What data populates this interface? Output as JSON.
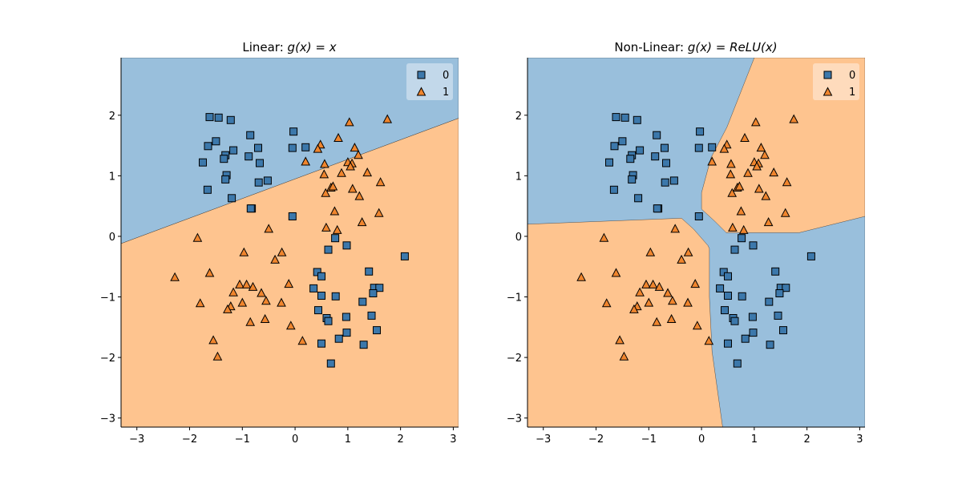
{
  "figure": {
    "background": "#ffffff"
  },
  "colors": {
    "class0_marker": "#3c78ab",
    "class1_marker": "#f0852d",
    "class0_region": "#99bfdc",
    "class1_region": "#fec48f",
    "marker_edge": "#000000",
    "legend_bg_0": "#b9d3e8",
    "legend_bg_1": "#fed5af"
  },
  "chart_data": [
    {
      "type": "scatter",
      "title": "Linear: g(x) = x",
      "title_plain": "Linear: ",
      "title_math": "g(x) = x",
      "xlim": [
        -3.3,
        3.1
      ],
      "ylim": [
        -3.15,
        2.95
      ],
      "xticks": [
        -3,
        -2,
        -1,
        0,
        1,
        2,
        3
      ],
      "yticks": [
        -3,
        -2,
        -1,
        0,
        1,
        2
      ],
      "xtick_labels": [
        "−3",
        "−2",
        "−1",
        "0",
        "1",
        "2",
        "3"
      ],
      "ytick_labels": [
        "−3",
        "−2",
        "−1",
        "0",
        "1",
        "2"
      ],
      "legend": {
        "placement": "top-right",
        "entries": [
          "0",
          "1"
        ]
      },
      "decision_regions": [
        {
          "class": 0,
          "polygon": [
            [
              -3.3,
              2.95
            ],
            [
              3.1,
              2.95
            ],
            [
              3.1,
              1.95
            ],
            [
              -3.3,
              -0.12
            ]
          ]
        },
        {
          "class": 1,
          "polygon": [
            [
              -3.3,
              -0.12
            ],
            [
              3.1,
              1.95
            ],
            [
              3.1,
              -3.15
            ],
            [
              -3.3,
              -3.15
            ]
          ]
        }
      ],
      "series": [
        {
          "name": "0",
          "marker": "square",
          "points": [
            [
              -1.62,
              1.97
            ],
            [
              -1.45,
              1.96
            ],
            [
              -1.22,
              1.92
            ],
            [
              -0.85,
              1.67
            ],
            [
              -0.03,
              1.73
            ],
            [
              -1.5,
              1.57
            ],
            [
              -1.65,
              1.49
            ],
            [
              -1.17,
              1.42
            ],
            [
              -1.32,
              1.34
            ],
            [
              -0.88,
              1.32
            ],
            [
              -1.35,
              1.28
            ],
            [
              -0.7,
              1.46
            ],
            [
              -0.05,
              1.46
            ],
            [
              0.2,
              1.47
            ],
            [
              -1.75,
              1.22
            ],
            [
              -0.67,
              1.21
            ],
            [
              -1.3,
              1.01
            ],
            [
              -1.32,
              0.94
            ],
            [
              -0.69,
              0.89
            ],
            [
              -0.52,
              0.92
            ],
            [
              -1.66,
              0.77
            ],
            [
              -1.2,
              0.63
            ],
            [
              -0.82,
              0.46
            ],
            [
              -0.84,
              0.46
            ],
            [
              -0.05,
              0.33
            ],
            [
              0.63,
              -0.22
            ],
            [
              0.76,
              -0.03
            ],
            [
              0.98,
              -0.15
            ],
            [
              0.42,
              -0.59
            ],
            [
              0.5,
              -0.66
            ],
            [
              1.4,
              -0.58
            ],
            [
              1.5,
              -0.85
            ],
            [
              1.6,
              -0.85
            ],
            [
              0.35,
              -0.86
            ],
            [
              1.48,
              -0.94
            ],
            [
              0.5,
              -0.98
            ],
            [
              0.77,
              -0.99
            ],
            [
              1.28,
              -1.08
            ],
            [
              0.44,
              -1.22
            ],
            [
              0.6,
              -1.35
            ],
            [
              0.97,
              -1.33
            ],
            [
              1.45,
              -1.31
            ],
            [
              0.63,
              -1.4
            ],
            [
              1.55,
              -1.55
            ],
            [
              0.98,
              -1.59
            ],
            [
              0.83,
              -1.69
            ],
            [
              0.5,
              -1.77
            ],
            [
              1.3,
              -1.79
            ],
            [
              0.68,
              -2.1
            ],
            [
              2.08,
              -0.33
            ]
          ]
        },
        {
          "name": "1",
          "marker": "triangle",
          "points": [
            [
              1.75,
              1.93
            ],
            [
              1.03,
              1.88
            ],
            [
              0.82,
              1.62
            ],
            [
              0.48,
              1.51
            ],
            [
              0.43,
              1.44
            ],
            [
              1.13,
              1.46
            ],
            [
              1.2,
              1.34
            ],
            [
              1.0,
              1.22
            ],
            [
              1.08,
              1.2
            ],
            [
              1.05,
              1.15
            ],
            [
              0.2,
              1.23
            ],
            [
              0.56,
              1.19
            ],
            [
              0.55,
              1.02
            ],
            [
              0.88,
              1.04
            ],
            [
              1.37,
              1.05
            ],
            [
              1.62,
              0.89
            ],
            [
              0.68,
              0.8
            ],
            [
              0.72,
              0.82
            ],
            [
              1.09,
              0.78
            ],
            [
              0.58,
              0.71
            ],
            [
              1.22,
              0.66
            ],
            [
              0.75,
              0.41
            ],
            [
              1.59,
              0.38
            ],
            [
              1.27,
              0.23
            ],
            [
              0.59,
              0.14
            ],
            [
              0.8,
              0.1
            ],
            [
              -0.5,
              0.12
            ],
            [
              -1.85,
              -0.03
            ],
            [
              -0.97,
              -0.27
            ],
            [
              -0.25,
              -0.27
            ],
            [
              -0.38,
              -0.39
            ],
            [
              -2.28,
              -0.68
            ],
            [
              -1.62,
              -0.61
            ],
            [
              -1.05,
              -0.8
            ],
            [
              -0.92,
              -0.8
            ],
            [
              -0.12,
              -0.79
            ],
            [
              -0.8,
              -0.84
            ],
            [
              -1.17,
              -0.93
            ],
            [
              -0.64,
              -0.94
            ],
            [
              -1.8,
              -1.11
            ],
            [
              -1.0,
              -1.1
            ],
            [
              -0.55,
              -1.07
            ],
            [
              -0.26,
              -1.1
            ],
            [
              -1.22,
              -1.16
            ],
            [
              -1.28,
              -1.21
            ],
            [
              -0.57,
              -1.37
            ],
            [
              -0.85,
              -1.42
            ],
            [
              -0.08,
              -1.48
            ],
            [
              -1.55,
              -1.72
            ],
            [
              0.14,
              -1.73
            ],
            [
              -1.47,
              -1.99
            ]
          ]
        }
      ]
    },
    {
      "type": "scatter",
      "title": "Non-Linear: g(x) = ReLU(x)",
      "title_plain": "Non-Linear: ",
      "title_math": "g(x) = ReLU(x)",
      "xlim": [
        -3.3,
        3.1
      ],
      "ylim": [
        -3.15,
        2.95
      ],
      "xticks": [
        -3,
        -2,
        -1,
        0,
        1,
        2,
        3
      ],
      "yticks": [
        -3,
        -2,
        -1,
        0,
        1,
        2
      ],
      "xtick_labels": [
        "−3",
        "−2",
        "−1",
        "0",
        "1",
        "2",
        "3"
      ],
      "ytick_labels": [
        "−3",
        "−2",
        "−1",
        "0",
        "1",
        "2"
      ],
      "legend": {
        "placement": "top-right",
        "entries": [
          "0",
          "1"
        ]
      },
      "decision_regions": [
        {
          "class": 0,
          "polygon": [
            [
              -3.3,
              2.95
            ],
            [
              3.1,
              2.95
            ],
            [
              3.1,
              -3.15
            ],
            [
              -3.3,
              -3.15
            ]
          ]
        },
        {
          "class": 1,
          "polygon": [
            [
              1.0,
              2.95
            ],
            [
              3.1,
              2.95
            ],
            [
              3.1,
              0.33
            ],
            [
              1.85,
              0.06
            ],
            [
              0.47,
              0.06
            ],
            [
              0.25,
              0.25
            ],
            [
              0.0,
              0.45
            ],
            [
              0.0,
              0.72
            ],
            [
              0.18,
              1.3
            ],
            [
              0.48,
              1.8
            ]
          ]
        },
        {
          "class": 1,
          "polygon": [
            [
              -3.3,
              0.2
            ],
            [
              -0.38,
              0.3
            ],
            [
              -0.15,
              0.12
            ],
            [
              0.12,
              -0.15
            ],
            [
              0.15,
              -0.2
            ],
            [
              0.15,
              -1.0
            ],
            [
              0.2,
              -1.9
            ],
            [
              0.4,
              -3.15
            ],
            [
              -3.3,
              -3.15
            ]
          ]
        }
      ],
      "series": [
        {
          "name": "0",
          "marker": "square",
          "points": [
            [
              -1.62,
              1.97
            ],
            [
              -1.45,
              1.96
            ],
            [
              -1.22,
              1.92
            ],
            [
              -0.85,
              1.67
            ],
            [
              -0.03,
              1.73
            ],
            [
              -1.5,
              1.57
            ],
            [
              -1.65,
              1.49
            ],
            [
              -1.17,
              1.42
            ],
            [
              -1.32,
              1.34
            ],
            [
              -0.88,
              1.32
            ],
            [
              -1.35,
              1.28
            ],
            [
              -0.7,
              1.46
            ],
            [
              -0.05,
              1.46
            ],
            [
              0.2,
              1.47
            ],
            [
              -1.75,
              1.22
            ],
            [
              -0.67,
              1.21
            ],
            [
              -1.3,
              1.01
            ],
            [
              -1.32,
              0.94
            ],
            [
              -0.69,
              0.89
            ],
            [
              -0.52,
              0.92
            ],
            [
              -1.66,
              0.77
            ],
            [
              -1.2,
              0.63
            ],
            [
              -0.82,
              0.46
            ],
            [
              -0.84,
              0.46
            ],
            [
              -0.05,
              0.33
            ],
            [
              0.63,
              -0.22
            ],
            [
              0.76,
              -0.03
            ],
            [
              0.98,
              -0.15
            ],
            [
              0.42,
              -0.59
            ],
            [
              0.5,
              -0.66
            ],
            [
              1.4,
              -0.58
            ],
            [
              1.5,
              -0.85
            ],
            [
              1.6,
              -0.85
            ],
            [
              0.35,
              -0.86
            ],
            [
              1.48,
              -0.94
            ],
            [
              0.5,
              -0.98
            ],
            [
              0.77,
              -0.99
            ],
            [
              1.28,
              -1.08
            ],
            [
              0.44,
              -1.22
            ],
            [
              0.6,
              -1.35
            ],
            [
              0.97,
              -1.33
            ],
            [
              1.45,
              -1.31
            ],
            [
              0.63,
              -1.4
            ],
            [
              1.55,
              -1.55
            ],
            [
              0.98,
              -1.59
            ],
            [
              0.83,
              -1.69
            ],
            [
              0.5,
              -1.77
            ],
            [
              1.3,
              -1.79
            ],
            [
              0.68,
              -2.1
            ],
            [
              2.08,
              -0.33
            ]
          ]
        },
        {
          "name": "1",
          "marker": "triangle",
          "points": [
            [
              1.75,
              1.93
            ],
            [
              1.03,
              1.88
            ],
            [
              0.82,
              1.62
            ],
            [
              0.48,
              1.51
            ],
            [
              0.43,
              1.44
            ],
            [
              1.13,
              1.46
            ],
            [
              1.2,
              1.34
            ],
            [
              1.0,
              1.22
            ],
            [
              1.08,
              1.2
            ],
            [
              1.05,
              1.15
            ],
            [
              0.2,
              1.23
            ],
            [
              0.56,
              1.19
            ],
            [
              0.55,
              1.02
            ],
            [
              0.88,
              1.04
            ],
            [
              1.37,
              1.05
            ],
            [
              1.62,
              0.89
            ],
            [
              0.68,
              0.8
            ],
            [
              0.72,
              0.82
            ],
            [
              1.09,
              0.78
            ],
            [
              0.58,
              0.71
            ],
            [
              1.22,
              0.66
            ],
            [
              0.75,
              0.41
            ],
            [
              1.59,
              0.38
            ],
            [
              1.27,
              0.23
            ],
            [
              0.59,
              0.14
            ],
            [
              0.8,
              0.1
            ],
            [
              -0.5,
              0.12
            ],
            [
              -1.85,
              -0.03
            ],
            [
              -0.97,
              -0.27
            ],
            [
              -0.25,
              -0.27
            ],
            [
              -0.38,
              -0.39
            ],
            [
              -2.28,
              -0.68
            ],
            [
              -1.62,
              -0.61
            ],
            [
              -1.05,
              -0.8
            ],
            [
              -0.92,
              -0.8
            ],
            [
              -0.12,
              -0.79
            ],
            [
              -0.8,
              -0.84
            ],
            [
              -1.17,
              -0.93
            ],
            [
              -0.64,
              -0.94
            ],
            [
              -1.8,
              -1.11
            ],
            [
              -1.0,
              -1.1
            ],
            [
              -0.55,
              -1.07
            ],
            [
              -0.26,
              -1.1
            ],
            [
              -1.22,
              -1.16
            ],
            [
              -1.28,
              -1.21
            ],
            [
              -0.57,
              -1.37
            ],
            [
              -0.85,
              -1.42
            ],
            [
              -0.08,
              -1.48
            ],
            [
              -1.55,
              -1.72
            ],
            [
              0.14,
              -1.73
            ],
            [
              -1.47,
              -1.99
            ]
          ]
        }
      ]
    }
  ]
}
